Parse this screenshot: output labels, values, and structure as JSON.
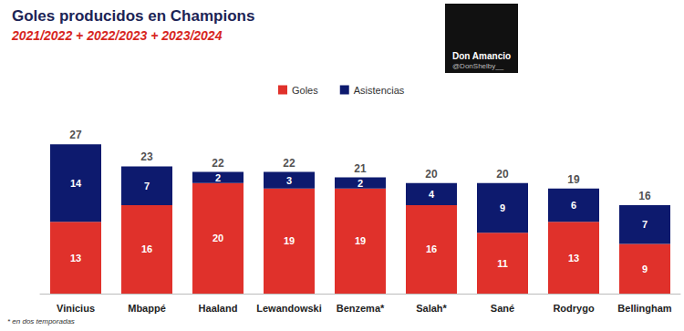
{
  "chart_data": {
    "type": "bar",
    "title": "Goles producidos en Champions",
    "subtitle": "2021/2022 + 2022/2023 + 2023/2024",
    "categories": [
      "Vinicius",
      "Mbappé",
      "Haaland",
      "Lewandowski",
      "Benzema*",
      "Salah*",
      "Sané",
      "Rodrygo",
      "Bellingham"
    ],
    "series": [
      {
        "name": "Goles",
        "color": "#e0312b",
        "values": [
          13,
          16,
          20,
          19,
          19,
          16,
          11,
          13,
          9
        ]
      },
      {
        "name": "Asistencias",
        "color": "#0d1a6e",
        "values": [
          14,
          7,
          2,
          3,
          2,
          4,
          9,
          6,
          7
        ]
      }
    ],
    "totals": [
      27,
      23,
      22,
      22,
      21,
      20,
      20,
      19,
      16
    ],
    "annotations": [
      "* en dos temporadas",
      "Don Amancio",
      "@DonShelby__"
    ],
    "ylim": [
      0,
      30
    ],
    "stacked": true,
    "data_labels": true,
    "tick_labels": "x",
    "grid": false,
    "legend": "top"
  }
}
